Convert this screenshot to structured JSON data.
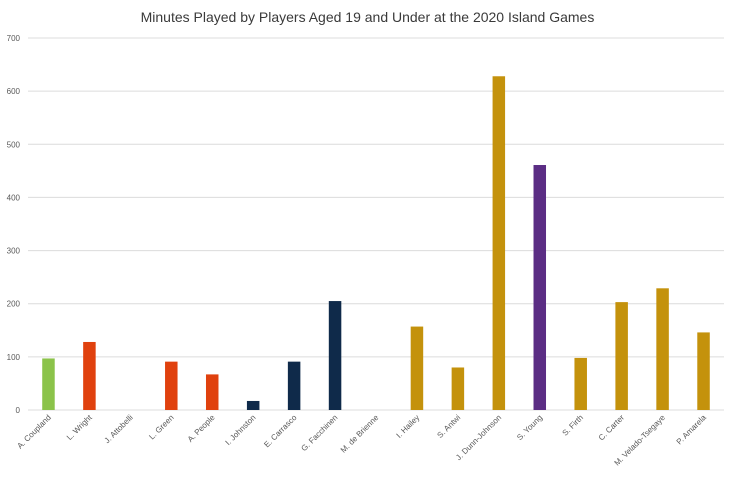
{
  "chart_data": {
    "type": "bar",
    "title": "Minutes Played by Players Aged 19 and Under at the 2020 Island Games",
    "xlabel": "",
    "ylabel": "",
    "ylim": [
      0,
      700
    ],
    "yticks": [
      0,
      100,
      200,
      300,
      400,
      500,
      600,
      700
    ],
    "grid": true,
    "legend": "none",
    "categories": [
      "A. Coupland",
      "L. Wright",
      "J. Attobelli",
      "L. Green",
      "A. People",
      "I. Johnston",
      "E. Carrasco",
      "G. Facchinen",
      "M. de Brienne",
      "I. Hailey",
      "S. Antwi",
      "J. Dunn-Johnson",
      "S. Young",
      "S. Firth",
      "C. Carter",
      "M. Velado-Tsegaye",
      "P. Amarela"
    ],
    "values": [
      97,
      128,
      0,
      91,
      67,
      17,
      91,
      205,
      0,
      157,
      80,
      628,
      461,
      98,
      203,
      229,
      146
    ],
    "colors": [
      "#8bc34a",
      "#e0410e",
      "#e0410e",
      "#e0410e",
      "#e0410e",
      "#0f2a4a",
      "#0f2a4a",
      "#0f2a4a",
      "#c4920c",
      "#c4920c",
      "#c4920c",
      "#c4920c",
      "#5b2d84",
      "#c4920c",
      "#c4920c",
      "#c4920c",
      "#c4920c"
    ]
  }
}
